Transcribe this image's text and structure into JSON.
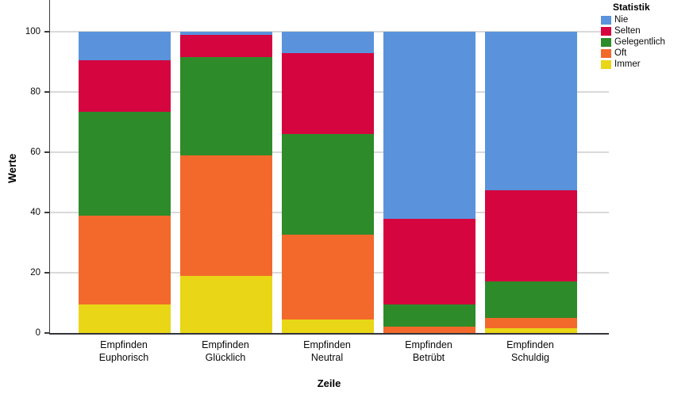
{
  "chart_data": {
    "type": "bar",
    "stacked": true,
    "orientation": "vertical",
    "xlabel": "Zeile",
    "ylabel": "Werte",
    "ylim": [
      0,
      100
    ],
    "yticks": [
      0,
      20,
      40,
      60,
      80,
      100
    ],
    "grid": true,
    "legend_title": "Statistik",
    "legend_position": "top-right",
    "categories": [
      "Empfinden Euphorisch",
      "Empfinden Glücklich",
      "Empfinden Neutral",
      "Empfinden Betrübt",
      "Empfinden Schuldig"
    ],
    "series": [
      {
        "name": "Nie",
        "color": "#5A93DC",
        "values": [
          9.5,
          1,
          7,
          62,
          52.5
        ]
      },
      {
        "name": "Selten",
        "color": "#D4053F",
        "values": [
          17,
          7.5,
          27,
          28.5,
          30.5
        ]
      },
      {
        "name": "Gelegentlich",
        "color": "#2E8B2A",
        "values": [
          34.5,
          32.5,
          33.5,
          7.5,
          12
        ]
      },
      {
        "name": "Oft",
        "color": "#F2692B",
        "values": [
          29.5,
          40,
          28,
          2,
          3.5
        ]
      },
      {
        "name": "Immer",
        "color": "#E9D616",
        "values": [
          9.5,
          19,
          4.5,
          0,
          1.5
        ]
      }
    ]
  }
}
